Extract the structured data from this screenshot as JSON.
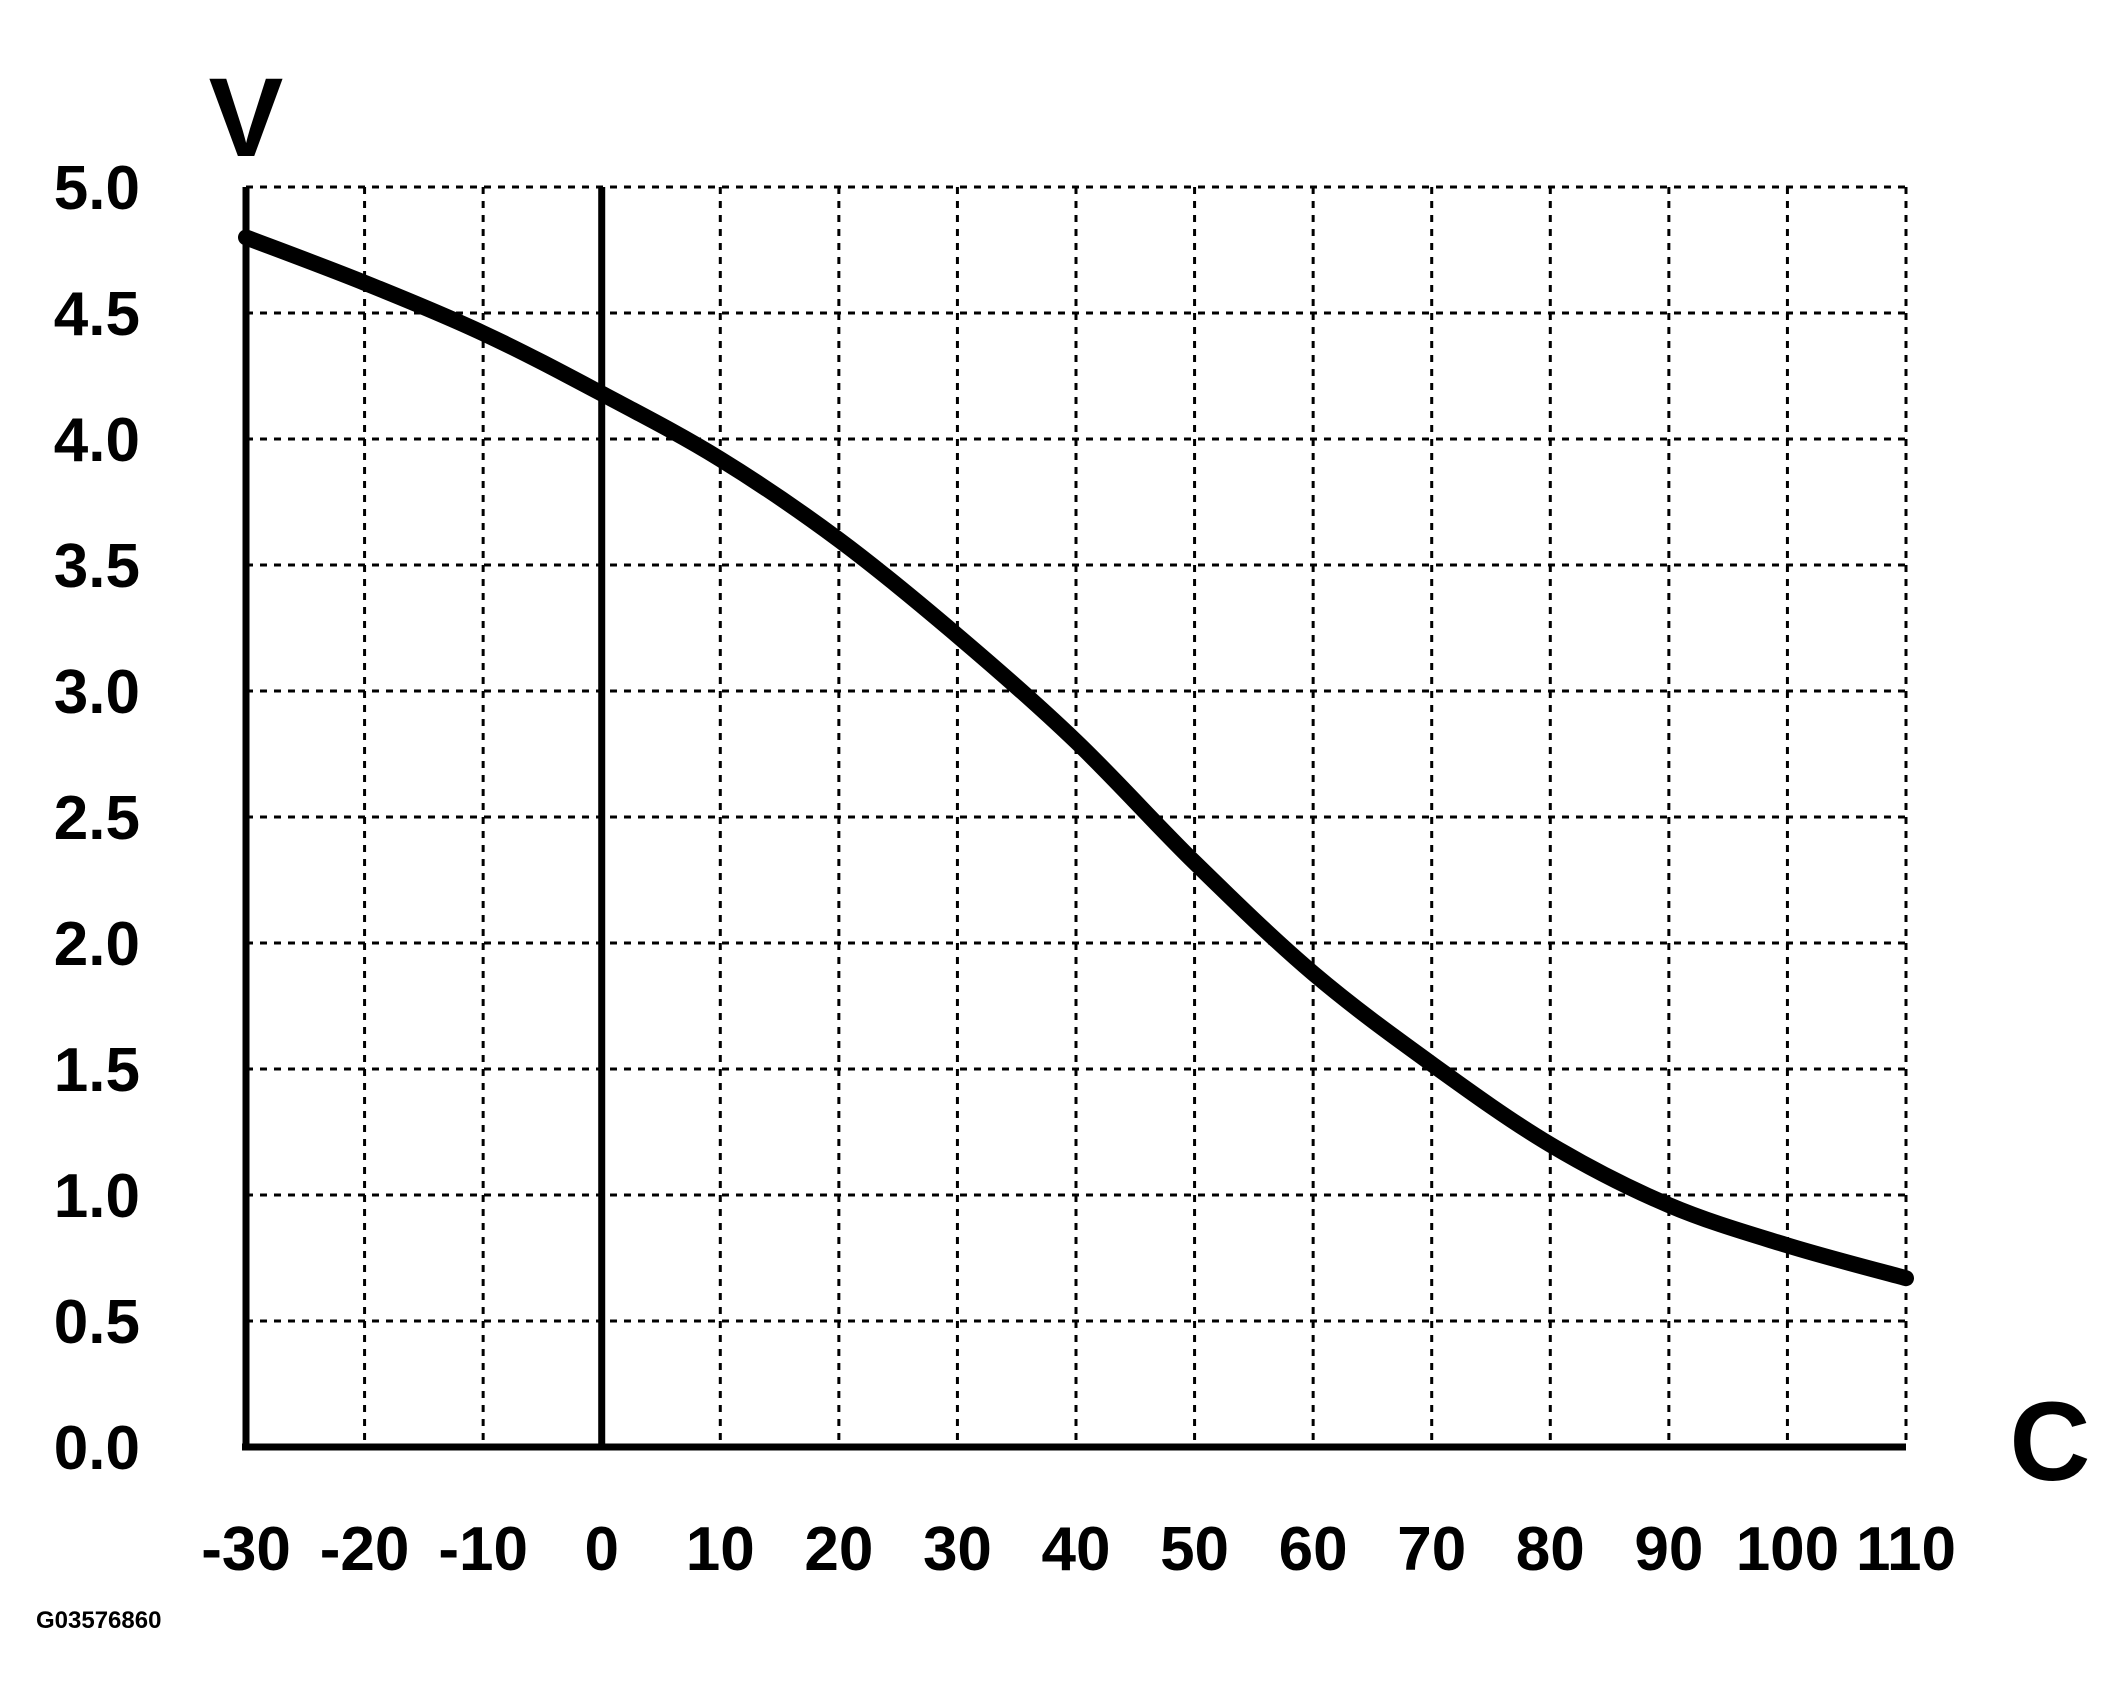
{
  "chart_data": {
    "type": "line",
    "title": "",
    "xlabel": "C",
    "ylabel": "V",
    "x_ticks": [
      "-30",
      "-20",
      "-10",
      "0",
      "10",
      "20",
      "30",
      "40",
      "50",
      "60",
      "70",
      "80",
      "90",
      "100",
      "110"
    ],
    "y_ticks": [
      "0.0",
      "0.5",
      "1.0",
      "1.5",
      "2.0",
      "2.5",
      "3.0",
      "3.5",
      "4.0",
      "4.5",
      "5.0"
    ],
    "xlim": [
      -30,
      110
    ],
    "ylim": [
      0,
      5
    ],
    "grid": true,
    "vertical_reference_line_x": 0,
    "series": [
      {
        "x": [
          -30,
          -20,
          -10,
          0,
          10,
          20,
          30,
          40,
          50,
          60,
          70,
          80,
          90,
          100,
          110
        ],
        "y": [
          4.8,
          4.62,
          4.42,
          4.18,
          3.92,
          3.6,
          3.22,
          2.8,
          2.32,
          1.88,
          1.52,
          1.2,
          0.96,
          0.8,
          0.67
        ]
      }
    ]
  },
  "figure_id": "G03576860"
}
